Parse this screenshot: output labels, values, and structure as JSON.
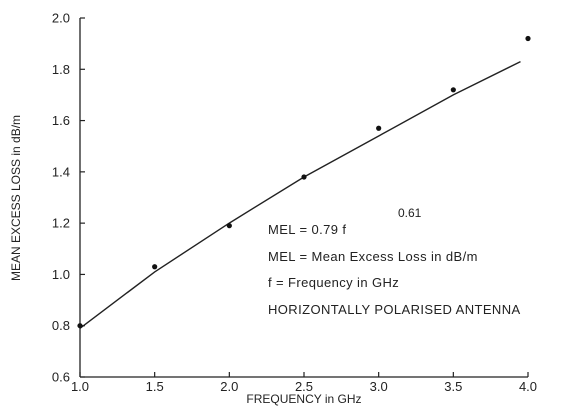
{
  "chart_data": {
    "type": "scatter",
    "title": "",
    "xlabel": "FREQUENCY in GHz",
    "ylabel": "MEAN EXCESS LOSS in dB/m",
    "xlim": [
      1.0,
      4.0
    ],
    "ylim": [
      0.6,
      2.0
    ],
    "x_ticks": [
      "1.0",
      "1.5",
      "2.0",
      "2.5",
      "3.0",
      "3.5",
      "4.0"
    ],
    "y_ticks": [
      "0.6",
      "0.8",
      "1.0",
      "1.2",
      "1.4",
      "1.6",
      "1.8",
      "2.0"
    ],
    "grid": false,
    "series": [
      {
        "type": "scatter",
        "x": [
          1.0,
          1.5,
          2.0,
          2.5,
          3.0,
          3.5,
          4.0
        ],
        "y": [
          0.8,
          1.03,
          1.19,
          1.38,
          1.57,
          1.72,
          1.92
        ]
      },
      {
        "type": "line",
        "fit": "MEL = 0.79 f^0.61",
        "x": [
          1.0,
          1.5,
          2.0,
          2.5,
          3.0,
          3.5,
          3.95
        ],
        "y": [
          0.79,
          1.01,
          1.2,
          1.38,
          1.54,
          1.7,
          1.83
        ]
      }
    ],
    "annotations": {
      "equation_main": "MEL = 0.79 f",
      "equation_exponent": "0.61",
      "definition_mel": "MEL = Mean Excess Loss in dB/m",
      "definition_f": "f = Frequency in GHz",
      "antenna_note": "HORIZONTALLY POLARISED ANTENNA"
    }
  }
}
